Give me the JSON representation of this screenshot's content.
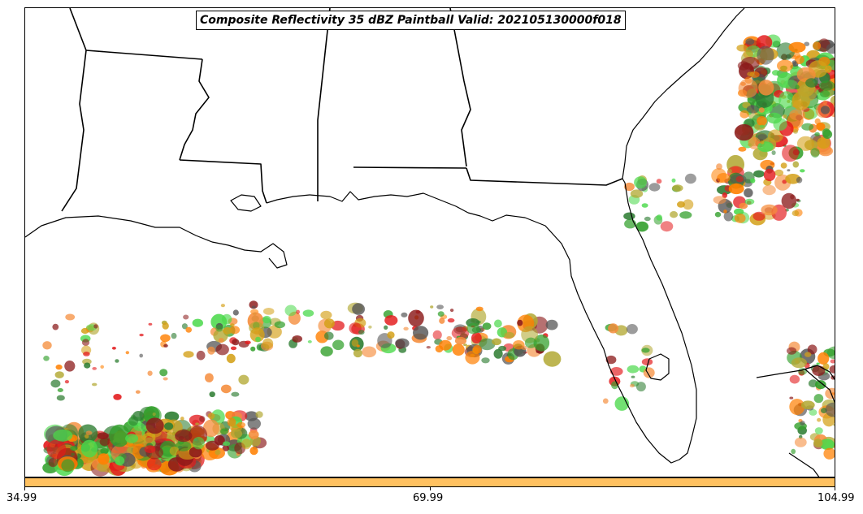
{
  "title": "Composite Reflectivity 35 dBZ Paintball Valid: 202105130000f018",
  "colors": {
    "background": "#ffffff",
    "outline": "#000000",
    "colorbar_fill": "#ffc160",
    "member_palette": [
      "#e31a1c",
      "#ff7f00",
      "#33a02c",
      "#4cd94c",
      "#b2a832",
      "#8b1a1a",
      "#2e7d32",
      "#555555",
      "#f58c3a",
      "#d4a017"
    ]
  },
  "colorbar": {
    "tick_labels": [
      "34.99",
      "69.99",
      "104.99"
    ]
  },
  "map": {
    "region": "Southeastern United States and Gulf of Mexico",
    "features": [
      "state-borders",
      "coastline",
      "reflectivity-paintball-blobs"
    ]
  }
}
